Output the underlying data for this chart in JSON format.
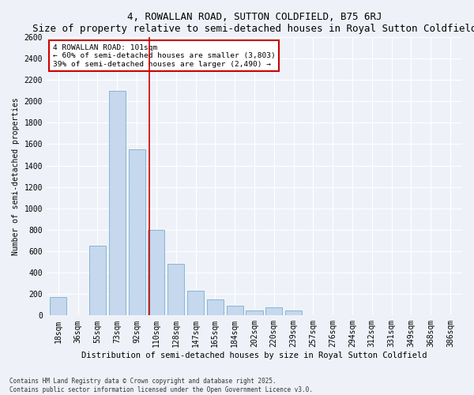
{
  "title": "4, ROWALLAN ROAD, SUTTON COLDFIELD, B75 6RJ",
  "subtitle": "Size of property relative to semi-detached houses in Royal Sutton Coldfield",
  "xlabel": "Distribution of semi-detached houses by size in Royal Sutton Coldfield",
  "ylabel": "Number of semi-detached properties",
  "categories": [
    "18sqm",
    "36sqm",
    "55sqm",
    "73sqm",
    "92sqm",
    "110sqm",
    "128sqm",
    "147sqm",
    "165sqm",
    "184sqm",
    "202sqm",
    "220sqm",
    "239sqm",
    "257sqm",
    "276sqm",
    "294sqm",
    "312sqm",
    "331sqm",
    "349sqm",
    "368sqm",
    "386sqm"
  ],
  "values": [
    175,
    0,
    650,
    2100,
    1550,
    800,
    480,
    230,
    150,
    90,
    50,
    75,
    45,
    0,
    0,
    0,
    0,
    0,
    0,
    0,
    0
  ],
  "bar_color": "#c5d8ed",
  "bar_edge_color": "#7aaed0",
  "vertical_line_color": "#cc0000",
  "annotation_title": "4 ROWALLAN ROAD: 101sqm",
  "annotation_line1": "← 60% of semi-detached houses are smaller (3,803)",
  "annotation_line2": "39% of semi-detached houses are larger (2,490) →",
  "annotation_box_color": "#cc0000",
  "ylim": [
    0,
    2600
  ],
  "yticks": [
    0,
    200,
    400,
    600,
    800,
    1000,
    1200,
    1400,
    1600,
    1800,
    2000,
    2200,
    2400,
    2600
  ],
  "footer_line1": "Contains HM Land Registry data © Crown copyright and database right 2025.",
  "footer_line2": "Contains public sector information licensed under the Open Government Licence v3.0.",
  "bg_color": "#eef2f8",
  "plot_bg_color": "#eef2f8",
  "title_fontsize": 9,
  "subtitle_fontsize": 8,
  "tick_fontsize": 7,
  "ylabel_fontsize": 7,
  "xlabel_fontsize": 7.5
}
